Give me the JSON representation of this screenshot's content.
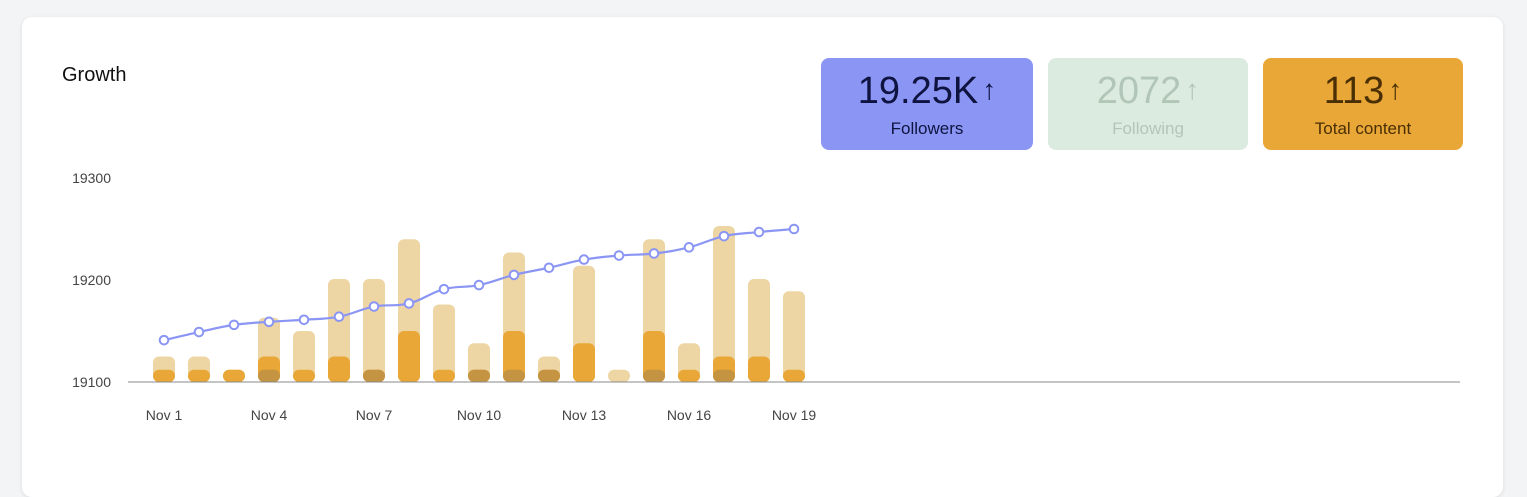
{
  "card": {
    "title": "Growth"
  },
  "stats": {
    "followers": {
      "value": "19.25K",
      "arrow": "↑",
      "label": "Followers",
      "color": "#8b96f4"
    },
    "following": {
      "value": "2072",
      "arrow": "↑",
      "label": "Following",
      "color": "#dcebe0"
    },
    "content": {
      "value": "113",
      "arrow": "↑",
      "label": "Total content",
      "color": "#e8a736"
    }
  },
  "chart_data": {
    "type": "bar",
    "x_tick_labels": [
      "Nov 1",
      "Nov 4",
      "Nov 7",
      "Nov 10",
      "Nov 13",
      "Nov 16",
      "Nov 19"
    ],
    "y_tick_labels": [
      "19300",
      "19200",
      "19100"
    ],
    "ylim": [
      19100,
      19300
    ],
    "grid": false,
    "legend": "none",
    "categories": [
      "Nov 1",
      "Nov 2",
      "Nov 3",
      "Nov 4",
      "Nov 5",
      "Nov 6",
      "Nov 7",
      "Nov 8",
      "Nov 9",
      "Nov 10",
      "Nov 11",
      "Nov 12",
      "Nov 13",
      "Nov 14",
      "Nov 15",
      "Nov 16",
      "Nov 17",
      "Nov 18",
      "Nov 19"
    ],
    "series": [
      {
        "type": "line",
        "color": "#8b96f4",
        "values": [
          19141,
          19149,
          19156,
          19159,
          19161,
          19164,
          19174,
          19177,
          19191,
          19195,
          19205,
          19212,
          19220,
          19224,
          19226,
          19232,
          19243,
          19247,
          19250
        ]
      },
      {
        "type": "bar",
        "color": "#eed5a4",
        "values": [
          19125,
          19125,
          19112,
          19163,
          19150,
          19201,
          19201,
          19240,
          19176,
          19138,
          19227,
          19125,
          19214,
          19112,
          19240,
          19138,
          19253,
          19201,
          19189
        ]
      },
      {
        "type": "bar",
        "color": "#e8a736",
        "values": [
          19112,
          19112,
          19112,
          19125,
          19112,
          19125,
          19112,
          19150,
          19112,
          19112,
          19150,
          19112,
          19138,
          19100,
          19150,
          19112,
          19125,
          19125,
          19112
        ]
      },
      {
        "type": "bar",
        "color": "#c49442",
        "values": [
          19100,
          19100,
          19100,
          19112,
          19100,
          19100,
          19112,
          19100,
          19100,
          19112,
          19112,
          19112,
          19100,
          19100,
          19112,
          19100,
          19112,
          19100,
          19100
        ]
      }
    ]
  }
}
